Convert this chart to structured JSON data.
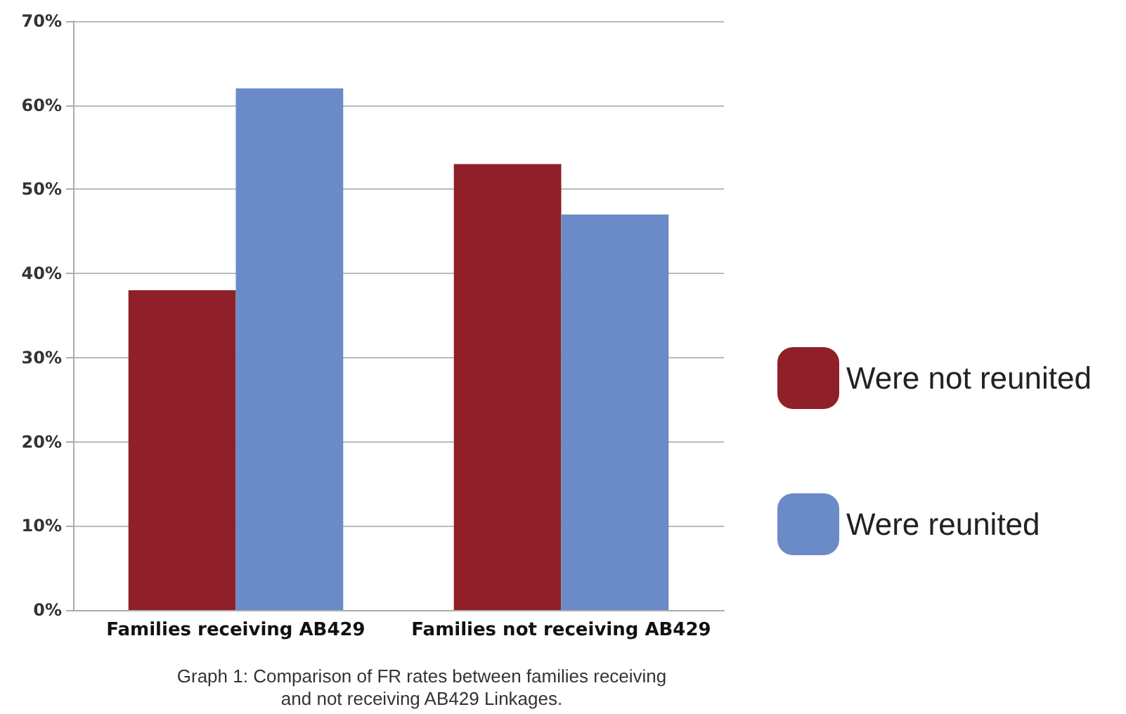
{
  "chart_data": {
    "type": "bar",
    "categories": [
      "Families receiving AB429",
      "Families not receiving AB429"
    ],
    "series": [
      {
        "name": "Were not reunited",
        "color": "#8f1f28",
        "values": [
          38,
          53
        ]
      },
      {
        "name": "Were reunited",
        "color": "#6a8bc7",
        "values": [
          62,
          47
        ]
      }
    ],
    "ylim": [
      0,
      70
    ],
    "yticks": [
      {
        "value": 0,
        "label": "0%"
      },
      {
        "value": 10,
        "label": "10%"
      },
      {
        "value": 20,
        "label": "20%"
      },
      {
        "value": 30,
        "label": "30%"
      },
      {
        "value": 40,
        "label": "40%"
      },
      {
        "value": 50,
        "label": "50%"
      },
      {
        "value": 60,
        "label": "60%"
      },
      {
        "value": 70,
        "label": "70%"
      }
    ],
    "grid": "y",
    "legend": "right",
    "annotations": [
      "Graph 1: Comparison of FR rates between families receiving\nand not receiving AB429 Linkages."
    ]
  }
}
